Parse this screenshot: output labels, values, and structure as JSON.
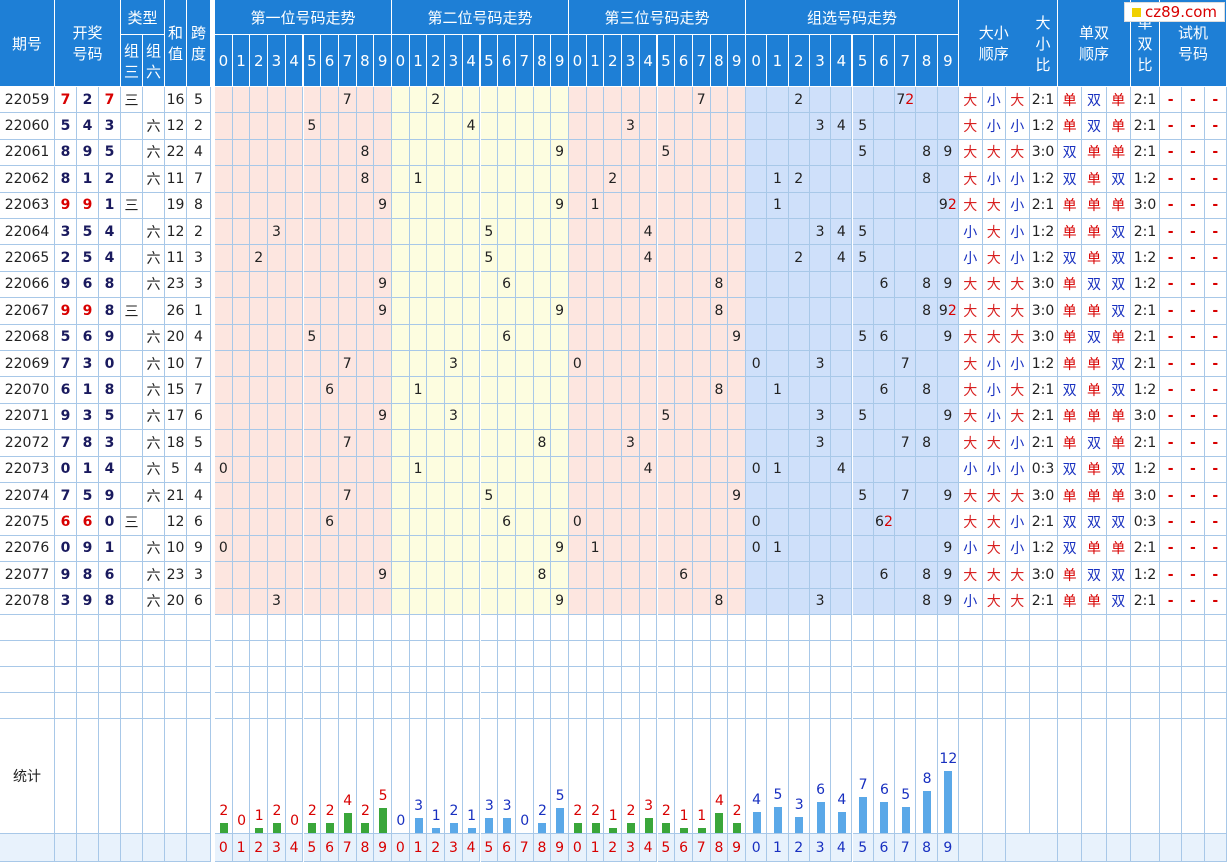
{
  "logo": "cz89.com",
  "headers": {
    "period": "期号",
    "draw": "开奖号码",
    "type": "类型",
    "type_sub": [
      "组三",
      "组六"
    ],
    "sum": "和值",
    "span": "跨度",
    "pos1": "第一位号码走势",
    "pos2": "第二位号码走势",
    "pos3": "第三位号码走势",
    "group": "组选号码走势",
    "bigsmall": "大小顺序",
    "bigsmall_ratio": "大小比",
    "oddeven": "单双顺序",
    "oddeven_ratio": "单双比",
    "trial": "试机号码",
    "digits": [
      "0",
      "1",
      "2",
      "3",
      "4",
      "5",
      "6",
      "7",
      "8",
      "9"
    ]
  },
  "rows": [
    {
      "p": "22059",
      "d": [
        7,
        2,
        7
      ],
      "t": "三",
      "s": 16,
      "k": 5,
      "g": [
        2,
        7
      ],
      "rep": {
        "7": 2
      },
      "bs": [
        "大",
        "小",
        "大"
      ],
      "br": "2:1",
      "oe": [
        "单",
        "双",
        "单"
      ],
      "or": "2:1"
    },
    {
      "p": "22060",
      "d": [
        5,
        4,
        3
      ],
      "t": "六",
      "s": 12,
      "k": 2,
      "g": [
        3,
        4,
        5
      ],
      "rep": {},
      "bs": [
        "大",
        "小",
        "小"
      ],
      "br": "1:2",
      "oe": [
        "单",
        "双",
        "单"
      ],
      "or": "2:1"
    },
    {
      "p": "22061",
      "d": [
        8,
        9,
        5
      ],
      "t": "六",
      "s": 22,
      "k": 4,
      "g": [
        5,
        8,
        9
      ],
      "rep": {},
      "bs": [
        "大",
        "大",
        "大"
      ],
      "br": "3:0",
      "oe": [
        "双",
        "单",
        "单"
      ],
      "or": "2:1"
    },
    {
      "p": "22062",
      "d": [
        8,
        1,
        2
      ],
      "t": "六",
      "s": 11,
      "k": 7,
      "g": [
        1,
        2,
        8
      ],
      "rep": {},
      "bs": [
        "大",
        "小",
        "小"
      ],
      "br": "1:2",
      "oe": [
        "双",
        "单",
        "双"
      ],
      "or": "1:2"
    },
    {
      "p": "22063",
      "d": [
        9,
        9,
        1
      ],
      "t": "三",
      "s": 19,
      "k": 8,
      "g": [
        1,
        9
      ],
      "rep": {
        "9": 2
      },
      "bs": [
        "大",
        "大",
        "小"
      ],
      "br": "2:1",
      "oe": [
        "单",
        "单",
        "单"
      ],
      "or": "3:0"
    },
    {
      "p": "22064",
      "d": [
        3,
        5,
        4
      ],
      "t": "六",
      "s": 12,
      "k": 2,
      "g": [
        3,
        4,
        5
      ],
      "rep": {},
      "bs": [
        "小",
        "大",
        "小"
      ],
      "br": "1:2",
      "oe": [
        "单",
        "单",
        "双"
      ],
      "or": "2:1"
    },
    {
      "p": "22065",
      "d": [
        2,
        5,
        4
      ],
      "t": "六",
      "s": 11,
      "k": 3,
      "g": [
        2,
        4,
        5
      ],
      "rep": {},
      "bs": [
        "小",
        "大",
        "小"
      ],
      "br": "1:2",
      "oe": [
        "双",
        "单",
        "双"
      ],
      "or": "1:2"
    },
    {
      "p": "22066",
      "d": [
        9,
        6,
        8
      ],
      "t": "六",
      "s": 23,
      "k": 3,
      "g": [
        6,
        8,
        9
      ],
      "rep": {},
      "bs": [
        "大",
        "大",
        "大"
      ],
      "br": "3:0",
      "oe": [
        "单",
        "双",
        "双"
      ],
      "or": "1:2"
    },
    {
      "p": "22067",
      "d": [
        9,
        9,
        8
      ],
      "t": "三",
      "s": 26,
      "k": 1,
      "g": [
        8,
        9
      ],
      "rep": {
        "9": 2
      },
      "bs": [
        "大",
        "大",
        "大"
      ],
      "br": "3:0",
      "oe": [
        "单",
        "单",
        "双"
      ],
      "or": "2:1"
    },
    {
      "p": "22068",
      "d": [
        5,
        6,
        9
      ],
      "t": "六",
      "s": 20,
      "k": 4,
      "g": [
        5,
        6,
        9
      ],
      "rep": {},
      "bs": [
        "大",
        "大",
        "大"
      ],
      "br": "3:0",
      "oe": [
        "单",
        "双",
        "单"
      ],
      "or": "2:1"
    },
    {
      "p": "22069",
      "d": [
        7,
        3,
        0
      ],
      "t": "六",
      "s": 10,
      "k": 7,
      "g": [
        0,
        3,
        7
      ],
      "rep": {},
      "bs": [
        "大",
        "小",
        "小"
      ],
      "br": "1:2",
      "oe": [
        "单",
        "单",
        "双"
      ],
      "or": "2:1"
    },
    {
      "p": "22070",
      "d": [
        6,
        1,
        8
      ],
      "t": "六",
      "s": 15,
      "k": 7,
      "g": [
        1,
        6,
        8
      ],
      "rep": {},
      "bs": [
        "大",
        "小",
        "大"
      ],
      "br": "2:1",
      "oe": [
        "双",
        "单",
        "双"
      ],
      "or": "1:2"
    },
    {
      "p": "22071",
      "d": [
        9,
        3,
        5
      ],
      "t": "六",
      "s": 17,
      "k": 6,
      "g": [
        3,
        5,
        9
      ],
      "rep": {},
      "bs": [
        "大",
        "小",
        "大"
      ],
      "br": "2:1",
      "oe": [
        "单",
        "单",
        "单"
      ],
      "or": "3:0"
    },
    {
      "p": "22072",
      "d": [
        7,
        8,
        3
      ],
      "t": "六",
      "s": 18,
      "k": 5,
      "g": [
        3,
        7,
        8
      ],
      "rep": {},
      "bs": [
        "大",
        "大",
        "小"
      ],
      "br": "2:1",
      "oe": [
        "单",
        "双",
        "单"
      ],
      "or": "2:1"
    },
    {
      "p": "22073",
      "d": [
        0,
        1,
        4
      ],
      "t": "六",
      "s": 5,
      "k": 4,
      "g": [
        0,
        1,
        4
      ],
      "rep": {},
      "bs": [
        "小",
        "小",
        "小"
      ],
      "br": "0:3",
      "oe": [
        "双",
        "单",
        "双"
      ],
      "or": "1:2"
    },
    {
      "p": "22074",
      "d": [
        7,
        5,
        9
      ],
      "t": "六",
      "s": 21,
      "k": 4,
      "g": [
        5,
        7,
        9
      ],
      "rep": {},
      "bs": [
        "大",
        "大",
        "大"
      ],
      "br": "3:0",
      "oe": [
        "单",
        "单",
        "单"
      ],
      "or": "3:0"
    },
    {
      "p": "22075",
      "d": [
        6,
        6,
        0
      ],
      "t": "三",
      "s": 12,
      "k": 6,
      "g": [
        0,
        6
      ],
      "rep": {
        "6": 2
      },
      "bs": [
        "大",
        "大",
        "小"
      ],
      "br": "2:1",
      "oe": [
        "双",
        "双",
        "双"
      ],
      "or": "0:3"
    },
    {
      "p": "22076",
      "d": [
        0,
        9,
        1
      ],
      "t": "六",
      "s": 10,
      "k": 9,
      "g": [
        0,
        1,
        9
      ],
      "rep": {},
      "bs": [
        "小",
        "大",
        "小"
      ],
      "br": "1:2",
      "oe": [
        "双",
        "单",
        "单"
      ],
      "or": "2:1"
    },
    {
      "p": "22077",
      "d": [
        9,
        8,
        6
      ],
      "t": "六",
      "s": 23,
      "k": 3,
      "g": [
        6,
        8,
        9
      ],
      "rep": {},
      "bs": [
        "大",
        "大",
        "大"
      ],
      "br": "3:0",
      "oe": [
        "单",
        "双",
        "双"
      ],
      "or": "1:2"
    },
    {
      "p": "22078",
      "d": [
        3,
        9,
        8
      ],
      "t": "六",
      "s": 20,
      "k": 6,
      "g": [
        3,
        8,
        9
      ],
      "rep": {},
      "bs": [
        "小",
        "大",
        "大"
      ],
      "br": "2:1",
      "oe": [
        "单",
        "单",
        "双"
      ],
      "or": "2:1"
    }
  ],
  "trial_value": "-",
  "stats": {
    "label": "统计",
    "pos1": [
      2,
      0,
      1,
      2,
      0,
      2,
      2,
      4,
      2,
      5
    ],
    "pos2": [
      0,
      3,
      1,
      2,
      1,
      3,
      3,
      0,
      2,
      5
    ],
    "pos3": [
      2,
      2,
      1,
      2,
      3,
      2,
      1,
      1,
      4,
      2
    ],
    "group": [
      4,
      5,
      3,
      6,
      4,
      7,
      6,
      5,
      8,
      12
    ]
  },
  "colors": {
    "header": "#1e7fd6",
    "pos1_bg": "#fde6e0",
    "pos2_bg": "#fdfde0",
    "pos3_bg": "#fde6e0",
    "group_bg": "#cfe0fa",
    "info_bg": "#ffffff",
    "bar_green": "#3aa63a",
    "bar_blue": "#5aa8e8"
  }
}
